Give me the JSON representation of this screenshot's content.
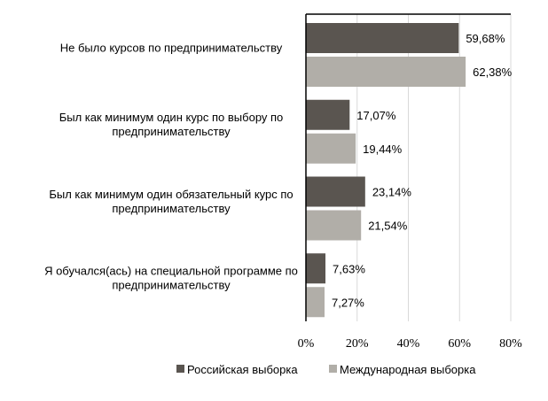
{
  "chart_data": {
    "type": "bar",
    "orientation": "horizontal",
    "categories": [
      [
        "Не было курсов по предпринимательству"
      ],
      [
        "Был как минимум один курс по выбору по",
        "предпринимательству"
      ],
      [
        "Был как минимум один обязательный курс по",
        "предпринимательству"
      ],
      [
        "Я обучался(ась) на специальной программе по",
        "предпринимательству"
      ]
    ],
    "series": [
      {
        "name": "Российская выборка",
        "color": "#5a5550",
        "values": [
          59.68,
          17.07,
          23.14,
          7.63
        ],
        "labels": [
          "59,68%",
          "17,07%",
          "23,14%",
          "7,63%"
        ]
      },
      {
        "name": "Международная выборка",
        "color": "#b1aea8",
        "values": [
          62.38,
          19.44,
          21.54,
          7.27
        ],
        "labels": [
          "62,38%",
          "19,44%",
          "21,54%",
          "7,27%"
        ]
      }
    ],
    "xlim": [
      0,
      80
    ],
    "xticks": [
      0,
      20,
      40,
      60,
      80
    ],
    "xtick_labels": [
      "0%",
      "20%",
      "40%",
      "60%",
      "80%"
    ],
    "grid": "vertical",
    "legend": "bottom"
  }
}
